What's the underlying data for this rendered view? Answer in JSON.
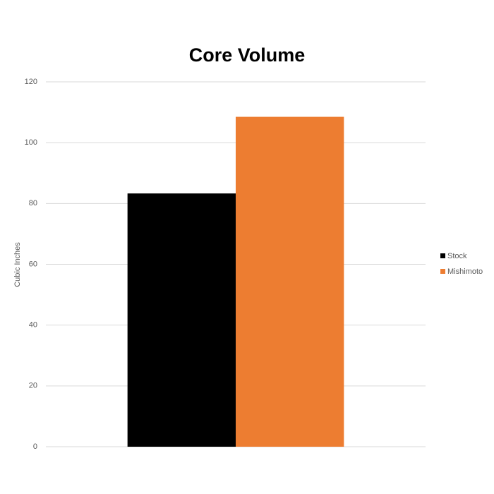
{
  "chart_data": {
    "type": "bar",
    "title": "Core Volume",
    "y_label": "Cubic Inches",
    "categories": [
      null
    ],
    "series": [
      {
        "name": "Stock",
        "color": "#000000",
        "values": [
          83.3
        ]
      },
      {
        "name": "Mishimoto",
        "color": "#ed7d31",
        "values": [
          108.5
        ]
      }
    ],
    "ylim": [
      0,
      120
    ],
    "yticks": [
      0,
      20,
      40,
      60,
      80,
      100,
      120
    ],
    "grid": true,
    "legend": "right"
  }
}
